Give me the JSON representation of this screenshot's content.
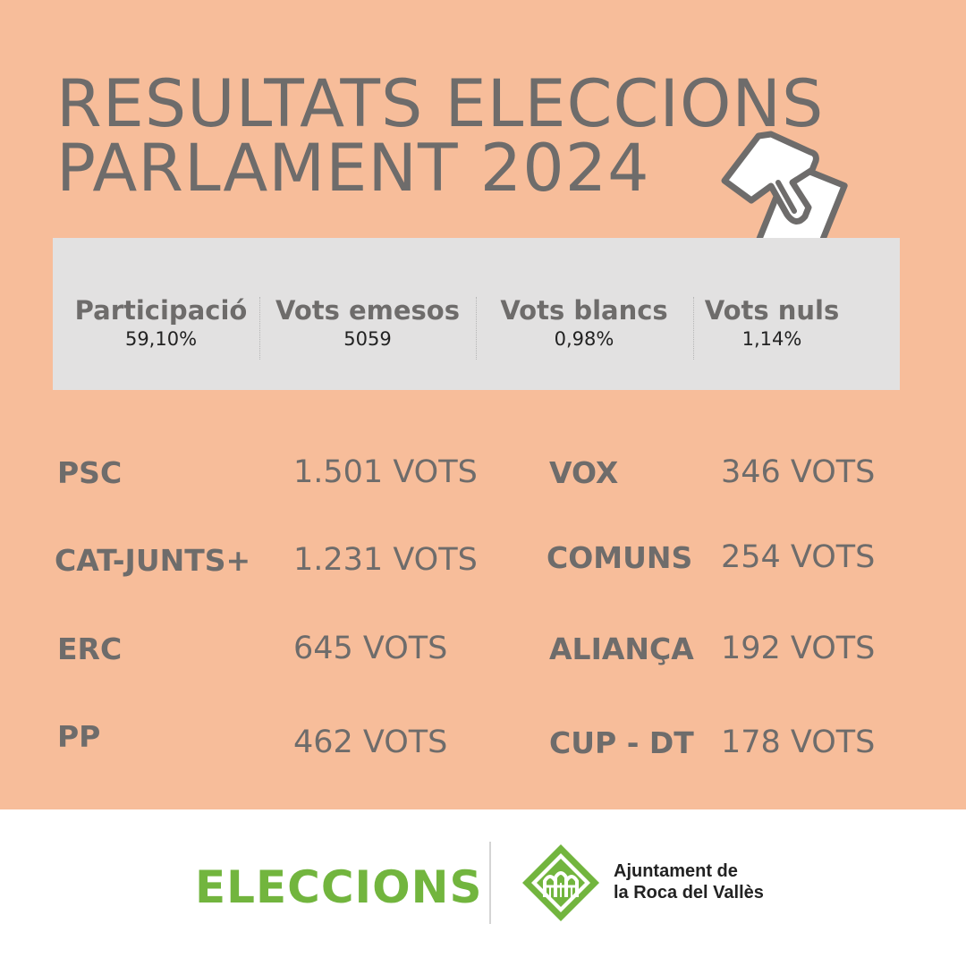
{
  "title": {
    "line1": "RESULTATS ELECCIONS",
    "line2": "PARLAMENT 2024"
  },
  "stats": [
    {
      "label": "Participació",
      "value": "59,10%"
    },
    {
      "label": "Vots emesos",
      "value": "5059"
    },
    {
      "label": "Vots blancs",
      "value": "0,98%"
    },
    {
      "label": "Vots nuls",
      "value": "1,14%"
    }
  ],
  "results": [
    {
      "party": "PSC",
      "votes": "1.501 VOTS"
    },
    {
      "party": "CAT-JUNTS+",
      "votes": "1.231 VOTS"
    },
    {
      "party": "ERC",
      "votes": "645 VOTS"
    },
    {
      "party": "PP",
      "votes": "462 VOTS"
    },
    {
      "party": "VOX",
      "votes": "346 VOTS"
    },
    {
      "party": "COMUNS",
      "votes": "254 VOTS"
    },
    {
      "party": "ALIANÇA",
      "votes": "192 VOTS"
    },
    {
      "party": "CUP - DT",
      "votes": "178 VOTS"
    }
  ],
  "footer": {
    "label": "ELECCIONS",
    "org_line1": "Ajuntament de",
    "org_line2": "la Roca del Vallès"
  },
  "icons": {
    "ballot": "ballot-box-icon",
    "logo": "ajuntament-logo"
  },
  "colors": {
    "background": "#f7bd9a",
    "panel": "#e2e1e1",
    "text": "#6e6c6b",
    "accent_green": "#72b53e"
  }
}
